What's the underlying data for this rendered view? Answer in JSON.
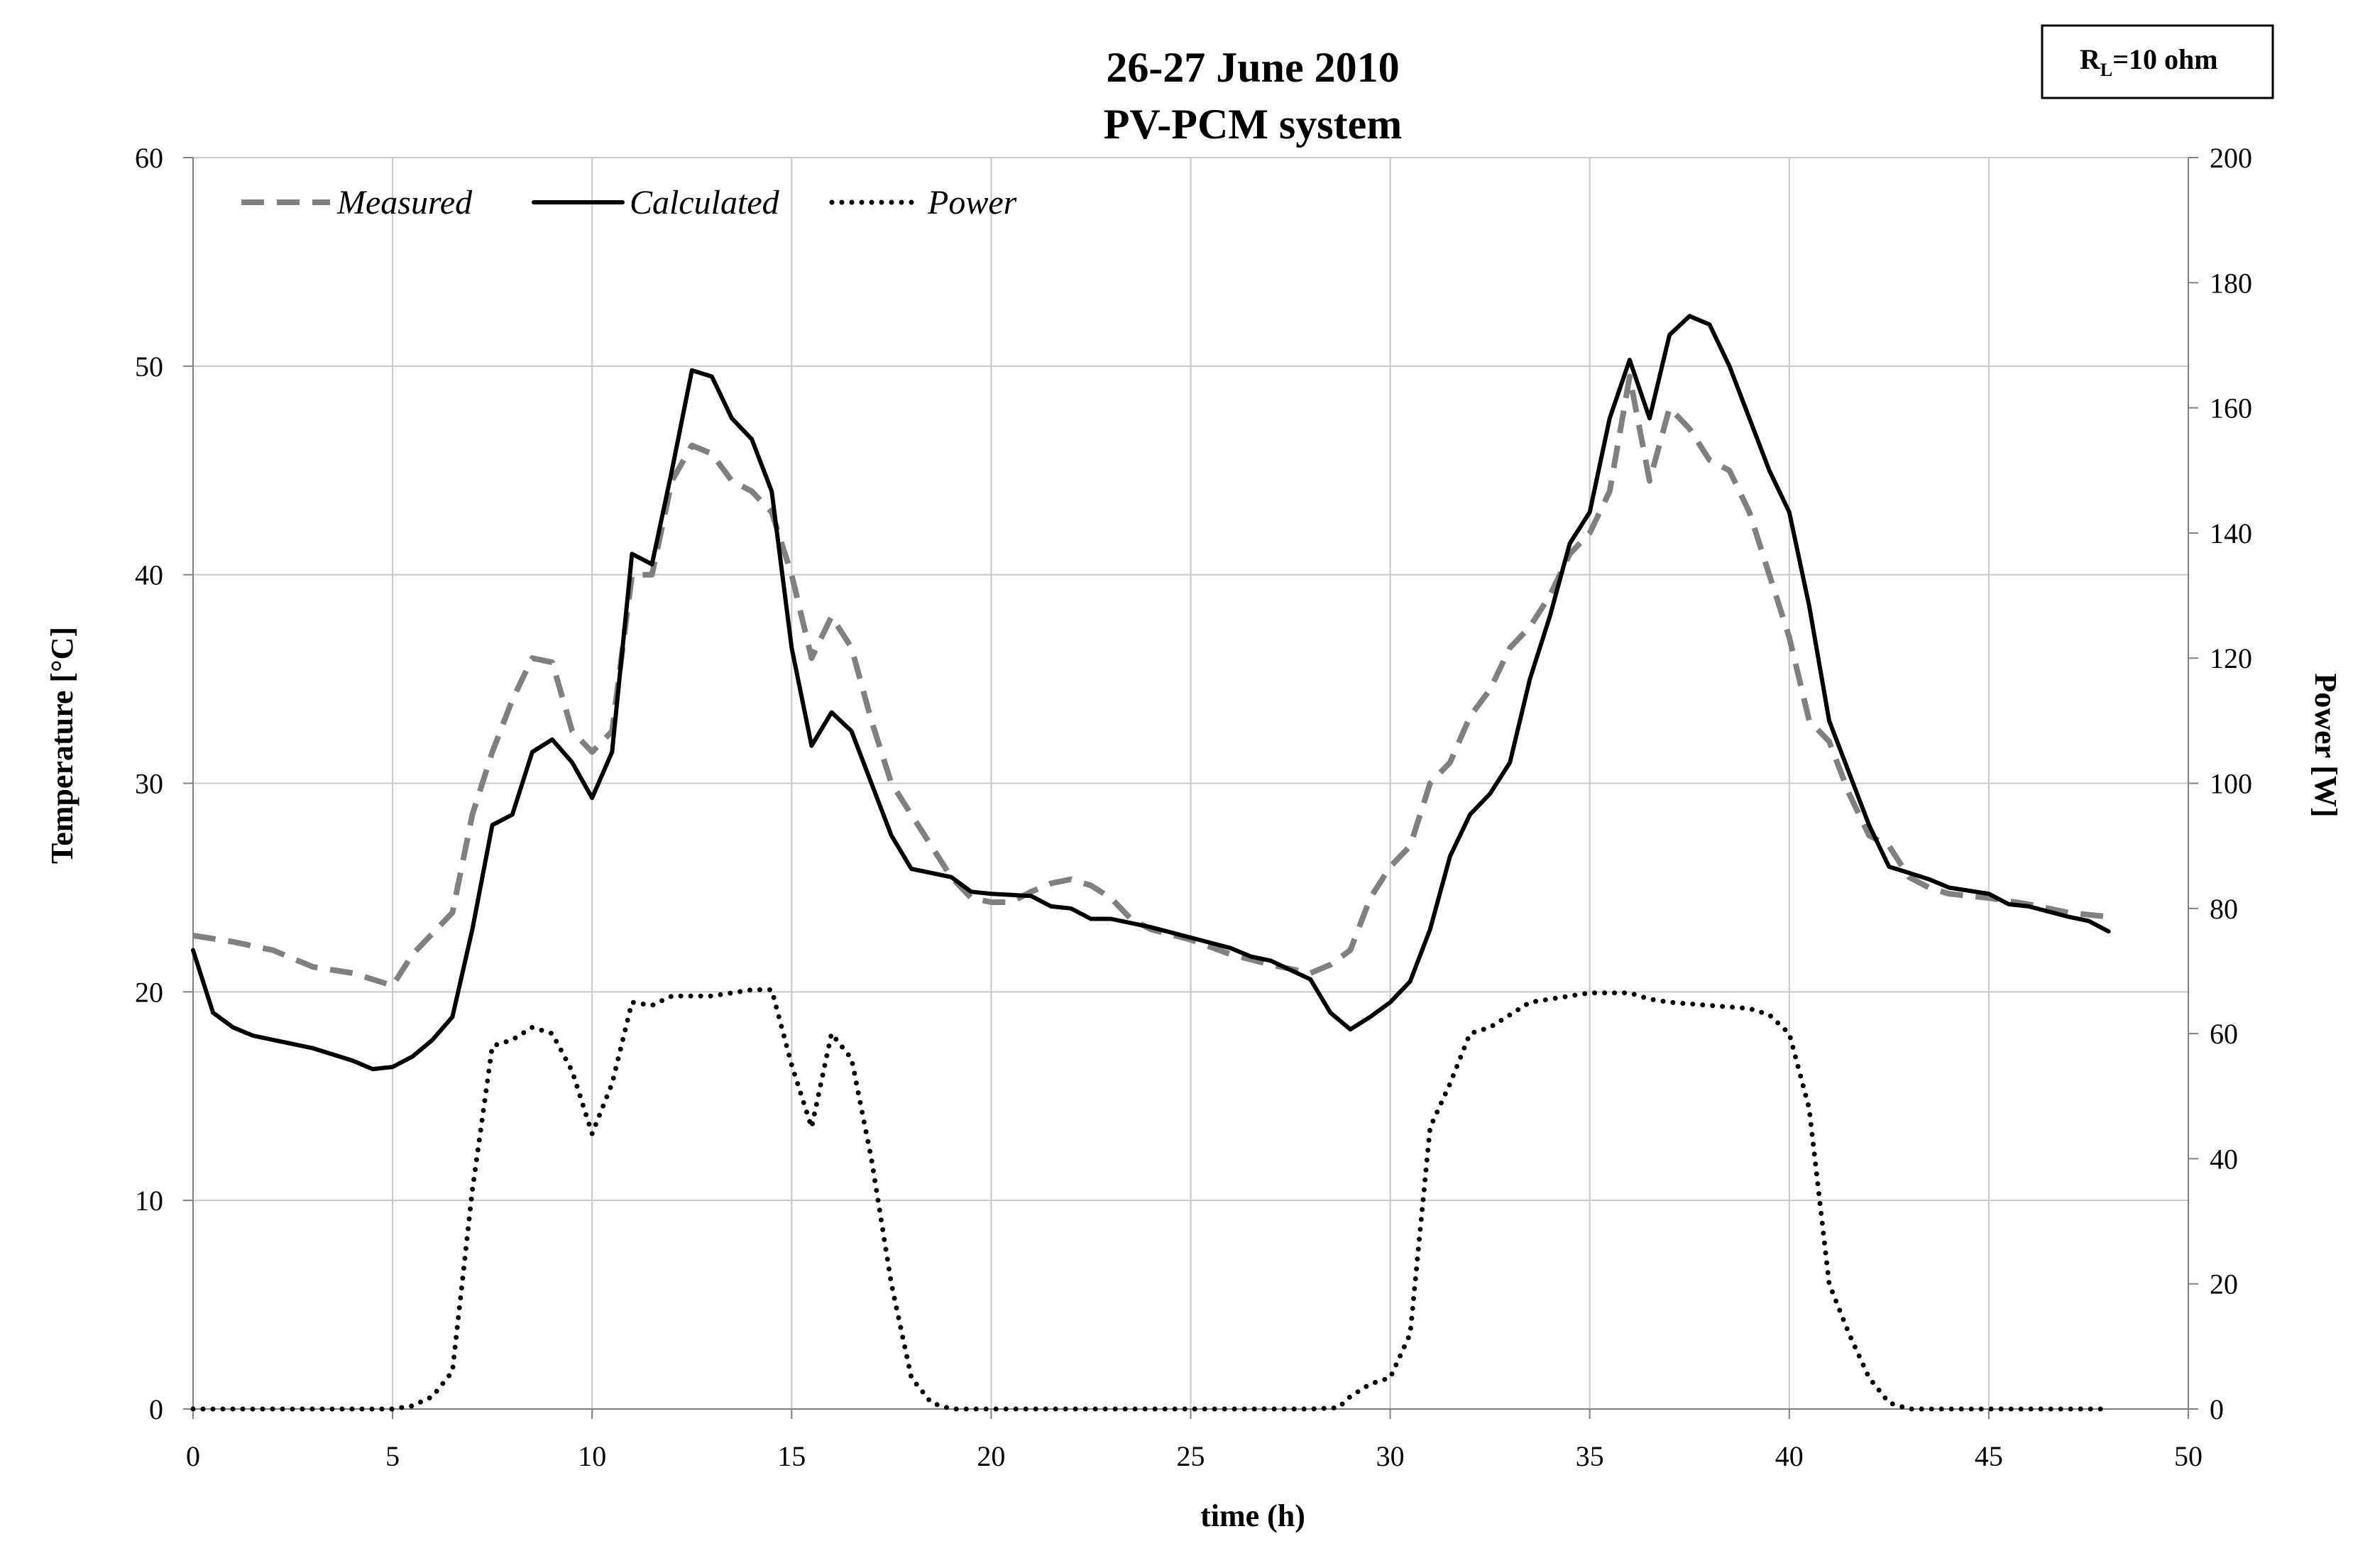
{
  "chart_data": {
    "type": "line",
    "title": [
      "26-27 June 2010",
      "PV-PCM system"
    ],
    "xlabel": "time (h)",
    "ylabel": "Temperature  [°C]",
    "y2label": "Power [W]",
    "xlim": [
      0,
      50
    ],
    "ylim": [
      0,
      60
    ],
    "y2lim": [
      0,
      200
    ],
    "xticks": [
      0,
      5,
      10,
      15,
      20,
      25,
      30,
      35,
      40,
      45,
      50
    ],
    "yticks": [
      0,
      10,
      20,
      30,
      40,
      50,
      60
    ],
    "y2ticks": [
      0,
      20,
      40,
      60,
      80,
      100,
      120,
      140,
      160,
      180,
      200
    ],
    "grid": true,
    "legend_position": "top-left",
    "annotation": {
      "main": "R",
      "sub": "L",
      "rest": "=10  ohm"
    },
    "series": [
      {
        "name": "Measured",
        "axis": "left",
        "style": "dashed",
        "color": "#808080",
        "points": [
          [
            0,
            22.7
          ],
          [
            1,
            22.4
          ],
          [
            2,
            22.0
          ],
          [
            3,
            21.2
          ],
          [
            4,
            20.9
          ],
          [
            5,
            20.3
          ],
          [
            5.5,
            21.8
          ],
          [
            6.5,
            23.8
          ],
          [
            7,
            28.5
          ],
          [
            7.5,
            31.5
          ],
          [
            8,
            34
          ],
          [
            8.5,
            36
          ],
          [
            9,
            35.8
          ],
          [
            9.5,
            32.5
          ],
          [
            10,
            31.5
          ],
          [
            10.5,
            32.5
          ],
          [
            11,
            40
          ],
          [
            11.5,
            40
          ],
          [
            12,
            44.5
          ],
          [
            12.5,
            46.2
          ],
          [
            13,
            45.8
          ],
          [
            13.5,
            44.5
          ],
          [
            14,
            44
          ],
          [
            14.5,
            43
          ],
          [
            15,
            40
          ],
          [
            15.5,
            36
          ],
          [
            16,
            38
          ],
          [
            16.5,
            36.5
          ],
          [
            17,
            33
          ],
          [
            17.5,
            30
          ],
          [
            18,
            28.5
          ],
          [
            18.5,
            27
          ],
          [
            19,
            25.5
          ],
          [
            19.5,
            24.5
          ],
          [
            20,
            24.3
          ],
          [
            20.5,
            24.3
          ],
          [
            21,
            24.8
          ],
          [
            21.5,
            25.2
          ],
          [
            22,
            25.4
          ],
          [
            22.5,
            25.1
          ],
          [
            23,
            24.5
          ],
          [
            23.5,
            23.5
          ],
          [
            24,
            23
          ],
          [
            25,
            22.5
          ],
          [
            26,
            21.8
          ],
          [
            27,
            21.3
          ],
          [
            28,
            20.9
          ],
          [
            28.5,
            21.3
          ],
          [
            29,
            22
          ],
          [
            29.5,
            24.5
          ],
          [
            30,
            26
          ],
          [
            30.5,
            27
          ],
          [
            31,
            30
          ],
          [
            31.5,
            31
          ],
          [
            32,
            33.2
          ],
          [
            32.5,
            34.5
          ],
          [
            33,
            36.5
          ],
          [
            33.5,
            37.5
          ],
          [
            34,
            39
          ],
          [
            34.5,
            41
          ],
          [
            35,
            42
          ],
          [
            35.5,
            44
          ],
          [
            36,
            49.5
          ],
          [
            36.5,
            44.5
          ],
          [
            37,
            48
          ],
          [
            37.5,
            47
          ],
          [
            38,
            45.5
          ],
          [
            38.5,
            45
          ],
          [
            39,
            43
          ],
          [
            39.5,
            40
          ],
          [
            40,
            37
          ],
          [
            40.5,
            33
          ],
          [
            41,
            32
          ],
          [
            41.5,
            29.5
          ],
          [
            42,
            27.5
          ],
          [
            42.5,
            27
          ],
          [
            43,
            25.5
          ],
          [
            43.5,
            25
          ],
          [
            44,
            24.7
          ],
          [
            45,
            24.5
          ],
          [
            46,
            24.2
          ],
          [
            47,
            23.8
          ],
          [
            48,
            23.6
          ]
        ]
      },
      {
        "name": "Calculated",
        "axis": "left",
        "style": "solid",
        "color": "#000000",
        "points": [
          [
            0,
            22
          ],
          [
            0.5,
            19
          ],
          [
            1,
            18.3
          ],
          [
            1.5,
            17.9
          ],
          [
            2,
            17.7
          ],
          [
            3,
            17.3
          ],
          [
            4,
            16.7
          ],
          [
            4.5,
            16.3
          ],
          [
            5,
            16.4
          ],
          [
            5.5,
            16.9
          ],
          [
            6,
            17.7
          ],
          [
            6.5,
            18.8
          ],
          [
            7,
            23
          ],
          [
            7.5,
            28
          ],
          [
            8,
            28.5
          ],
          [
            8.5,
            31.5
          ],
          [
            9,
            32.1
          ],
          [
            9.5,
            31
          ],
          [
            10,
            29.3
          ],
          [
            10.5,
            31.5
          ],
          [
            11,
            41
          ],
          [
            11.5,
            40.5
          ],
          [
            12,
            45
          ],
          [
            12.5,
            49.8
          ],
          [
            13,
            49.5
          ],
          [
            13.5,
            47.5
          ],
          [
            14,
            46.5
          ],
          [
            14.5,
            44
          ],
          [
            15,
            36.5
          ],
          [
            15.5,
            31.8
          ],
          [
            16,
            33.4
          ],
          [
            16.5,
            32.5
          ],
          [
            17,
            30
          ],
          [
            17.5,
            27.5
          ],
          [
            18,
            25.9
          ],
          [
            18.5,
            25.7
          ],
          [
            19,
            25.5
          ],
          [
            19.5,
            24.8
          ],
          [
            20,
            24.7
          ],
          [
            21,
            24.6
          ],
          [
            21.5,
            24.1
          ],
          [
            22,
            24
          ],
          [
            22.5,
            23.5
          ],
          [
            23,
            23.5
          ],
          [
            24,
            23.1
          ],
          [
            25,
            22.6
          ],
          [
            26,
            22.1
          ],
          [
            26.5,
            21.7
          ],
          [
            27,
            21.5
          ],
          [
            28,
            20.6
          ],
          [
            28.5,
            19
          ],
          [
            29,
            18.2
          ],
          [
            29.5,
            18.8
          ],
          [
            30,
            19.5
          ],
          [
            30.5,
            20.5
          ],
          [
            31,
            23
          ],
          [
            31.5,
            26.5
          ],
          [
            32,
            28.5
          ],
          [
            32.5,
            29.5
          ],
          [
            33,
            31
          ],
          [
            33.5,
            35
          ],
          [
            34,
            38
          ],
          [
            34.5,
            41.5
          ],
          [
            35,
            43
          ],
          [
            35.5,
            47.5
          ],
          [
            36,
            50.3
          ],
          [
            36.5,
            47.5
          ],
          [
            37,
            51.5
          ],
          [
            37.5,
            52.4
          ],
          [
            38,
            52
          ],
          [
            38.5,
            50
          ],
          [
            39,
            47.5
          ],
          [
            39.5,
            45
          ],
          [
            40,
            43
          ],
          [
            40.5,
            38.5
          ],
          [
            41,
            33
          ],
          [
            41.5,
            30.5
          ],
          [
            42,
            28
          ],
          [
            42.5,
            26
          ],
          [
            43,
            25.7
          ],
          [
            43.5,
            25.4
          ],
          [
            44,
            25
          ],
          [
            45,
            24.7
          ],
          [
            45.5,
            24.2
          ],
          [
            46,
            24.1
          ],
          [
            47,
            23.6
          ],
          [
            47.5,
            23.4
          ],
          [
            48,
            22.9
          ]
        ]
      },
      {
        "name": "Power",
        "axis": "right",
        "style": "dotted",
        "color": "#000000",
        "points": [
          [
            0,
            0
          ],
          [
            1,
            0
          ],
          [
            2,
            0
          ],
          [
            3,
            0
          ],
          [
            4,
            0
          ],
          [
            5,
            0
          ],
          [
            5.5,
            0.5
          ],
          [
            6,
            2
          ],
          [
            6.5,
            6
          ],
          [
            7,
            35
          ],
          [
            7.5,
            58
          ],
          [
            8,
            59
          ],
          [
            8.5,
            61
          ],
          [
            9,
            60
          ],
          [
            9.5,
            54
          ],
          [
            10,
            44
          ],
          [
            10.5,
            52
          ],
          [
            11,
            65
          ],
          [
            11.5,
            64.5
          ],
          [
            12,
            66
          ],
          [
            13,
            66
          ],
          [
            13.5,
            66.5
          ],
          [
            14,
            67
          ],
          [
            14.5,
            67
          ],
          [
            15,
            55
          ],
          [
            15.5,
            45
          ],
          [
            16,
            60
          ],
          [
            16.5,
            56
          ],
          [
            17,
            40
          ],
          [
            17.5,
            20
          ],
          [
            18,
            5
          ],
          [
            18.5,
            1
          ],
          [
            19,
            0
          ],
          [
            20,
            0
          ],
          [
            21,
            0
          ],
          [
            22,
            0
          ],
          [
            23,
            0
          ],
          [
            24,
            0
          ],
          [
            25,
            0
          ],
          [
            26,
            0
          ],
          [
            27,
            0
          ],
          [
            28,
            0
          ],
          [
            28.7,
            0.2
          ],
          [
            29,
            2
          ],
          [
            29.5,
            4
          ],
          [
            30,
            5
          ],
          [
            30.5,
            12
          ],
          [
            31,
            45
          ],
          [
            31.5,
            52
          ],
          [
            32,
            60
          ],
          [
            32.5,
            61
          ],
          [
            33,
            63
          ],
          [
            33.5,
            65
          ],
          [
            34,
            65.5
          ],
          [
            35,
            66.5
          ],
          [
            36,
            66.5
          ],
          [
            36.5,
            65.5
          ],
          [
            37,
            65
          ],
          [
            38,
            64.5
          ],
          [
            39,
            64
          ],
          [
            39.5,
            63
          ],
          [
            40,
            60
          ],
          [
            40.5,
            48
          ],
          [
            41,
            20
          ],
          [
            41.5,
            12
          ],
          [
            42,
            5
          ],
          [
            42.5,
            1
          ],
          [
            43,
            0
          ],
          [
            44,
            0
          ],
          [
            45,
            0
          ],
          [
            46,
            0
          ],
          [
            47,
            0
          ],
          [
            48,
            0
          ]
        ]
      }
    ]
  }
}
